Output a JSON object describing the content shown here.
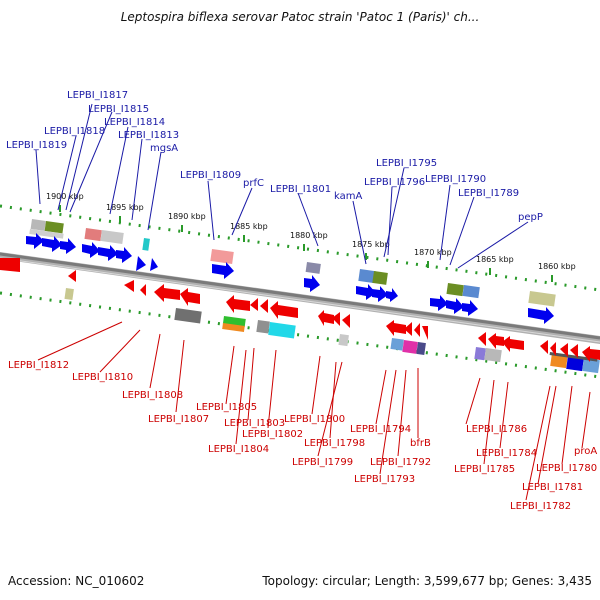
{
  "title": "Leptospira biflexa serovar Patoc strain 'Patoc 1 (Paris)' ch...",
  "footer": {
    "accession": "Accession: NC_010602",
    "summary": "Topology: circular; Length: 3,599,677 bp; Genes: 3,435"
  },
  "colors": {
    "forward_label": "#1a1aa6",
    "reverse_label": "#cc0000",
    "backbone": "#808080",
    "forward_arrow": "#0000ee",
    "reverse_arrow": "#ee0000"
  },
  "scale_ticks": [
    "1900 kbp",
    "1895 kbp",
    "1890 kbp",
    "1885 kbp",
    "1880 kbp",
    "1875 kbp",
    "1870 kbp",
    "1865 kbp",
    "1860 kbp"
  ],
  "forward_labels": [
    "LEPBI_I1817",
    "LEPBI_I1815",
    "LEPBI_I1814",
    "LEPBI_I1818",
    "LEPBI_I1813",
    "LEPBI_I1819",
    "mgsA",
    "LEPBI_I1809",
    "prfC",
    "LEPBI_I1801",
    "kamA",
    "LEPBI_I1795",
    "LEPBI_I1796",
    "LEPBI_I1790",
    "LEPBI_I1789",
    "pepP"
  ],
  "reverse_labels": [
    "LEPBI_I1812",
    "LEPBI_I1810",
    "LEPBI_I1808",
    "LEPBI_I1807",
    "LEPBI_I1805",
    "LEPBI_I1803",
    "LEPBI_I1802",
    "LEPBI_I1804",
    "LEPBI_I1800",
    "LEPBI_I1798",
    "LEPBI_I1799",
    "LEPBI_I1794",
    "bfrB",
    "LEPBI_I1792",
    "LEPBI_I1793",
    "LEPBI_I1786",
    "LEPBI_I1784",
    "LEPBI_I1785",
    "proA",
    "LEPBI_I1780",
    "LEPBI_I1781",
    "LEPBI_I1782"
  ]
}
